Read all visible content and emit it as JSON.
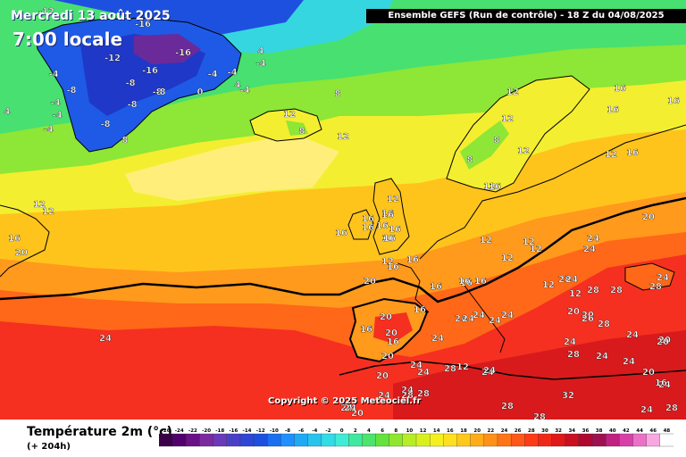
{
  "header": {
    "date": "Mercredi 13 août 2025",
    "time": "7:00 locale",
    "model": "Ensemble GEFS  (Run de contrôle)  -  18 Z du 04/08/2025"
  },
  "copyright": "Copyright © 2025 Meteociel.fr",
  "legend": {
    "title": "Température 2m (°c)",
    "subtitle": "(+ 204h)",
    "ticks": [
      -26,
      -24,
      -22,
      -20,
      -18,
      -16,
      -14,
      -12,
      -10,
      -8,
      -6,
      -4,
      -2,
      0,
      2,
      4,
      6,
      8,
      10,
      12,
      14,
      16,
      18,
      20,
      22,
      24,
      26,
      28,
      30,
      32,
      34,
      36,
      38,
      40,
      42,
      44,
      46,
      48
    ],
    "colors": [
      "#3a0048",
      "#52006a",
      "#6a1088",
      "#7c2aa0",
      "#6a3ab8",
      "#4a40c8",
      "#3046d4",
      "#1e50e0",
      "#1870f0",
      "#1e90ff",
      "#20aaf4",
      "#28c4ec",
      "#30dce6",
      "#40ecd6",
      "#40e8a0",
      "#4ce46e",
      "#66e23c",
      "#90e62e",
      "#b8ec26",
      "#d8f020",
      "#f4f020",
      "#ffe020",
      "#ffc81c",
      "#ffac18",
      "#ff9018",
      "#ff7418",
      "#ff5818",
      "#ff3c18",
      "#f02818",
      "#e01818",
      "#c81020",
      "#b00830",
      "#a01050",
      "#c02080",
      "#d840a8",
      "#ec70c8",
      "#f8a8e0",
      "#ffffff"
    ]
  },
  "labels": [
    {
      "text": "-12"
    },
    {
      "text": "-16"
    },
    {
      "text": "-16"
    },
    {
      "text": "-16"
    },
    {
      "text": "-12"
    },
    {
      "text": "-8"
    },
    {
      "text": "-8"
    },
    {
      "text": "-8"
    },
    {
      "text": "-8"
    },
    {
      "text": "-4"
    },
    {
      "text": "-4"
    },
    {
      "text": "-4"
    },
    {
      "text": "-4"
    },
    {
      "text": "0"
    },
    {
      "text": "-4"
    },
    {
      "text": "-4"
    },
    {
      "text": "-4"
    },
    {
      "text": "-4"
    },
    {
      "text": "4"
    },
    {
      "text": "4"
    },
    {
      "text": "4"
    },
    {
      "text": "8"
    },
    {
      "text": "-8"
    },
    {
      "text": "-8"
    },
    {
      "text": "8"
    },
    {
      "text": "12"
    },
    {
      "text": "8"
    },
    {
      "text": "12"
    },
    {
      "text": "12"
    },
    {
      "text": "12"
    },
    {
      "text": "12"
    },
    {
      "text": "8"
    },
    {
      "text": "8"
    },
    {
      "text": "12"
    },
    {
      "text": "16"
    },
    {
      "text": "16"
    },
    {
      "text": "16"
    },
    {
      "text": "16"
    },
    {
      "text": "12"
    },
    {
      "text": "16"
    },
    {
      "text": "16"
    },
    {
      "text": "16"
    },
    {
      "text": "16"
    },
    {
      "text": "16"
    },
    {
      "text": "16"
    },
    {
      "text": "16"
    },
    {
      "text": "16"
    },
    {
      "text": "12"
    },
    {
      "text": "12"
    },
    {
      "text": "12"
    },
    {
      "text": "12"
    },
    {
      "text": "16"
    },
    {
      "text": "16"
    },
    {
      "text": "16"
    },
    {
      "text": "16"
    },
    {
      "text": "16"
    },
    {
      "text": "16"
    },
    {
      "text": "16"
    },
    {
      "text": "16"
    },
    {
      "text": "12"
    },
    {
      "text": "12"
    },
    {
      "text": "12"
    },
    {
      "text": "16"
    },
    {
      "text": "20"
    },
    {
      "text": "20"
    },
    {
      "text": "20"
    },
    {
      "text": "16"
    },
    {
      "text": "20"
    },
    {
      "text": "20"
    },
    {
      "text": "24"
    },
    {
      "text": "24"
    },
    {
      "text": "24"
    },
    {
      "text": "20"
    },
    {
      "text": "20"
    },
    {
      "text": "16"
    },
    {
      "text": "24"
    },
    {
      "text": "24"
    },
    {
      "text": "20"
    },
    {
      "text": "24"
    },
    {
      "text": "24"
    },
    {
      "text": "28"
    },
    {
      "text": "24"
    },
    {
      "text": "28"
    },
    {
      "text": "28"
    },
    {
      "text": "20"
    },
    {
      "text": "26"
    },
    {
      "text": "28"
    },
    {
      "text": "24"
    },
    {
      "text": "24"
    },
    {
      "text": "24"
    },
    {
      "text": "24"
    },
    {
      "text": "28"
    },
    {
      "text": "24"
    },
    {
      "text": "20"
    },
    {
      "text": "28"
    },
    {
      "text": "24"
    },
    {
      "text": "24"
    },
    {
      "text": "28"
    },
    {
      "text": "24"
    },
    {
      "text": "24"
    },
    {
      "text": "28"
    },
    {
      "text": "24"
    },
    {
      "text": "20"
    },
    {
      "text": "24"
    },
    {
      "text": "24"
    },
    {
      "text": "24"
    },
    {
      "text": "28"
    },
    {
      "text": "24"
    },
    {
      "text": "28"
    },
    {
      "text": "28"
    },
    {
      "text": "28"
    },
    {
      "text": "32"
    },
    {
      "text": "24"
    },
    {
      "text": "24"
    },
    {
      "text": "24"
    },
    {
      "text": "20"
    },
    {
      "text": "16"
    },
    {
      "text": "16"
    },
    {
      "text": "16"
    },
    {
      "text": "12"
    },
    {
      "text": "12"
    },
    {
      "text": "20"
    },
    {
      "text": "12"
    },
    {
      "text": "16"
    },
    {
      "text": "12"
    }
  ]
}
